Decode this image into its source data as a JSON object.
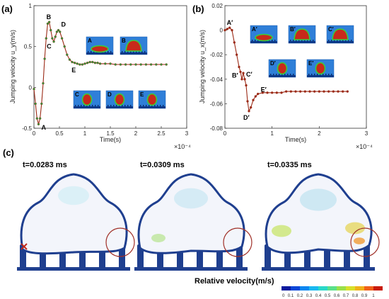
{
  "panels": {
    "a": "(a)",
    "b": "(b)",
    "c": "(c)"
  },
  "chart_data": [
    {
      "id": "a",
      "type": "line",
      "xlabel": "Time(s)",
      "ylabel": "Jumping velocity u_y(m/s)",
      "x_exponent": "×10⁻⁴",
      "xlim": [
        0,
        3
      ],
      "ylim": [
        -0.5,
        1
      ],
      "xticks": [
        0,
        0.5,
        1,
        1.5,
        2,
        2.5,
        3
      ],
      "xtick_labels": [
        "0",
        "0.5",
        "1",
        "1.5",
        "2",
        "2.5",
        "3"
      ],
      "yticks": [
        -0.5,
        0,
        0.5,
        1
      ],
      "ytick_labels": [
        "-0.5",
        "0",
        "0.5",
        "1"
      ],
      "grid": false,
      "line_color": "#9b2a16",
      "marker_color": "#2a9a3a",
      "points": [
        [
          0,
          -0.02
        ],
        [
          0.03,
          -0.2
        ],
        [
          0.06,
          -0.38
        ],
        [
          0.09,
          -0.45
        ],
        [
          0.12,
          -0.38
        ],
        [
          0.15,
          -0.2
        ],
        [
          0.18,
          0.05
        ],
        [
          0.21,
          0.35
        ],
        [
          0.24,
          0.6
        ],
        [
          0.27,
          0.78
        ],
        [
          0.3,
          0.8
        ],
        [
          0.33,
          0.7
        ],
        [
          0.36,
          0.6
        ],
        [
          0.39,
          0.56
        ],
        [
          0.42,
          0.62
        ],
        [
          0.45,
          0.68
        ],
        [
          0.48,
          0.7
        ],
        [
          0.51,
          0.68
        ],
        [
          0.55,
          0.6
        ],
        [
          0.6,
          0.5
        ],
        [
          0.65,
          0.4
        ],
        [
          0.7,
          0.34
        ],
        [
          0.75,
          0.31
        ],
        [
          0.8,
          0.3
        ],
        [
          0.85,
          0.29
        ],
        [
          0.9,
          0.28
        ],
        [
          0.95,
          0.28
        ],
        [
          1.0,
          0.29
        ],
        [
          1.05,
          0.3
        ],
        [
          1.1,
          0.31
        ],
        [
          1.15,
          0.31
        ],
        [
          1.2,
          0.3
        ],
        [
          1.25,
          0.3
        ],
        [
          1.3,
          0.29
        ],
        [
          1.4,
          0.29
        ],
        [
          1.5,
          0.29
        ],
        [
          1.6,
          0.28
        ],
        [
          1.7,
          0.28
        ],
        [
          1.8,
          0.28
        ],
        [
          1.9,
          0.28
        ],
        [
          2.0,
          0.28
        ],
        [
          2.1,
          0.28
        ],
        [
          2.2,
          0.28
        ],
        [
          2.3,
          0.28
        ],
        [
          2.4,
          0.28
        ],
        [
          2.5,
          0.28
        ],
        [
          2.6,
          0.28
        ]
      ],
      "annotations": [
        {
          "label": "A",
          "x": 0.09,
          "y": -0.45
        },
        {
          "label": "B",
          "x": 0.3,
          "y": 0.8
        },
        {
          "label": "C",
          "x": 0.39,
          "y": 0.56
        },
        {
          "label": "D",
          "x": 0.48,
          "y": 0.7
        },
        {
          "label": "E",
          "x": 0.85,
          "y": 0.29
        }
      ],
      "insets": [
        {
          "label": "A",
          "shape": "flat"
        },
        {
          "label": "B",
          "shape": "dome"
        },
        {
          "label": "C",
          "shape": "tall"
        },
        {
          "label": "D",
          "shape": "tall"
        },
        {
          "label": "E",
          "shape": "tall"
        }
      ]
    },
    {
      "id": "b",
      "type": "line",
      "xlabel": "Time(s)",
      "ylabel": "Jumping velocity u_x(m/s)",
      "x_exponent": "×10⁻⁴",
      "xlim": [
        0,
        3
      ],
      "ylim": [
        -0.08,
        0.02
      ],
      "xticks": [
        0,
        1,
        2,
        3
      ],
      "xtick_labels": [
        "0",
        "1",
        "2",
        "3"
      ],
      "yticks": [
        -0.08,
        -0.06,
        -0.04,
        -0.02,
        0,
        0.02
      ],
      "ytick_labels": [
        "-0.08",
        "-0.06",
        "-0.04",
        "-0.02",
        "0",
        "0.02"
      ],
      "grid": false,
      "line_color": "#9b2a16",
      "marker_color": "#9b2a16",
      "points": [
        [
          0,
          0.0
        ],
        [
          0.05,
          0.001
        ],
        [
          0.1,
          0.002
        ],
        [
          0.15,
          0.0
        ],
        [
          0.2,
          -0.01
        ],
        [
          0.25,
          -0.02
        ],
        [
          0.3,
          -0.03
        ],
        [
          0.33,
          -0.034
        ],
        [
          0.36,
          -0.04
        ],
        [
          0.39,
          -0.035
        ],
        [
          0.42,
          -0.04
        ],
        [
          0.45,
          -0.045
        ],
        [
          0.48,
          -0.058
        ],
        [
          0.51,
          -0.066
        ],
        [
          0.55,
          -0.063
        ],
        [
          0.6,
          -0.057
        ],
        [
          0.65,
          -0.054
        ],
        [
          0.7,
          -0.052
        ],
        [
          0.8,
          -0.051
        ],
        [
          0.9,
          -0.051
        ],
        [
          1.0,
          -0.051
        ],
        [
          1.1,
          -0.051
        ],
        [
          1.2,
          -0.051
        ],
        [
          1.3,
          -0.05
        ],
        [
          1.4,
          -0.05
        ],
        [
          1.5,
          -0.05
        ],
        [
          1.6,
          -0.05
        ],
        [
          1.7,
          -0.05
        ],
        [
          1.8,
          -0.05
        ],
        [
          1.9,
          -0.05
        ],
        [
          2.0,
          -0.05
        ],
        [
          2.1,
          -0.05
        ],
        [
          2.2,
          -0.05
        ],
        [
          2.3,
          -0.05
        ],
        [
          2.4,
          -0.05
        ],
        [
          2.5,
          -0.05
        ],
        [
          2.6,
          -0.05
        ]
      ],
      "annotations": [
        {
          "label": "A′",
          "x": 0.1,
          "y": 0.002
        },
        {
          "label": "B′",
          "x": 0.33,
          "y": -0.034
        },
        {
          "label": "C′",
          "x": 0.42,
          "y": -0.04
        },
        {
          "label": "D′",
          "x": 0.51,
          "y": -0.066
        },
        {
          "label": "E′",
          "x": 0.7,
          "y": -0.052
        }
      ],
      "insets": [
        {
          "label": "A′",
          "shape": "flat"
        },
        {
          "label": "B′",
          "shape": "dome"
        },
        {
          "label": "C′",
          "shape": "dome"
        },
        {
          "label": "D′",
          "shape": "tall"
        },
        {
          "label": "E′",
          "shape": "tall"
        }
      ]
    }
  ],
  "snapshots": [
    {
      "title": "t=0.0283 ms",
      "phase": 0
    },
    {
      "title": "t=0.0309 ms",
      "phase": 1
    },
    {
      "title": "t=0.0335 ms",
      "phase": 2
    }
  ],
  "colorbar": {
    "title": "Relative velocity(m/s)",
    "ticks": [
      "0",
      "0.1",
      "0.2",
      "0.3",
      "0.4",
      "0.5",
      "0.6",
      "0.7",
      "0.8",
      "0.9",
      "1"
    ],
    "colors": [
      "#0a1a9e",
      "#0a46d8",
      "#0a86f0",
      "#1ab8f0",
      "#2ad8c8",
      "#5ae08a",
      "#9ae04a",
      "#d8e02a",
      "#f0b01a",
      "#f0601a",
      "#c81a0a"
    ]
  },
  "colors": {
    "droplet_outline": "#1f3f8f",
    "pillar": "#1f3f8f",
    "highlight_circle": "#a03028"
  }
}
